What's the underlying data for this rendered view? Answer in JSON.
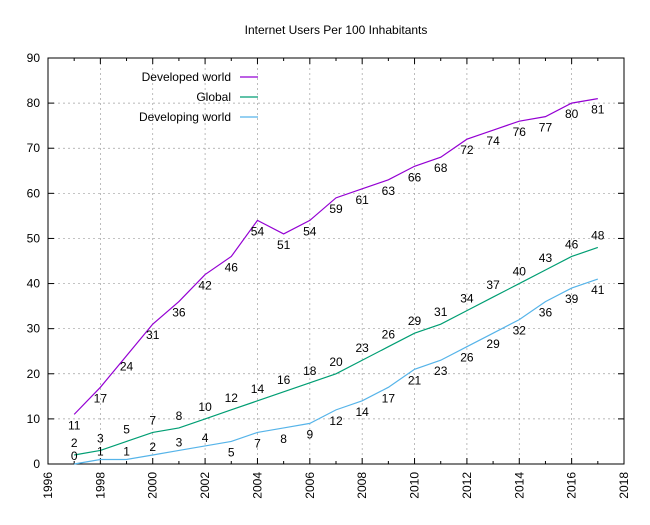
{
  "chart_data": {
    "type": "line",
    "title": "Internet Users Per 100 Inhabitants",
    "xlabel": "",
    "ylabel": "",
    "xlim": [
      1996,
      2018
    ],
    "ylim": [
      0,
      90
    ],
    "xticks": [
      1996,
      1998,
      2000,
      2002,
      2004,
      2006,
      2008,
      2010,
      2012,
      2014,
      2016,
      2018
    ],
    "yticks": [
      0,
      10,
      20,
      30,
      40,
      50,
      60,
      70,
      80,
      90
    ],
    "grid": true,
    "legend_position": "top-left",
    "x": [
      1997,
      1998,
      1999,
      2000,
      2001,
      2002,
      2003,
      2004,
      2005,
      2006,
      2007,
      2008,
      2009,
      2010,
      2011,
      2012,
      2013,
      2014,
      2015,
      2016,
      2017
    ],
    "series": [
      {
        "name": "Developed world",
        "color": "#9400d3",
        "values": [
          11,
          17,
          24,
          31,
          36,
          42,
          46,
          54,
          51,
          54,
          59,
          61,
          63,
          66,
          68,
          72,
          74,
          76,
          77,
          80,
          81
        ]
      },
      {
        "name": "Global",
        "color": "#009e73",
        "values": [
          2,
          3,
          5,
          7,
          8,
          10,
          12,
          14,
          16,
          18,
          20,
          23,
          26,
          29,
          31,
          34,
          37,
          40,
          43,
          46,
          48
        ]
      },
      {
        "name": "Developing world",
        "color": "#56b4e9",
        "values": [
          0,
          1,
          1,
          2,
          3,
          4,
          5,
          7,
          8,
          9,
          12,
          14,
          17,
          21,
          23,
          26,
          29,
          32,
          36,
          39,
          41
        ]
      }
    ]
  }
}
